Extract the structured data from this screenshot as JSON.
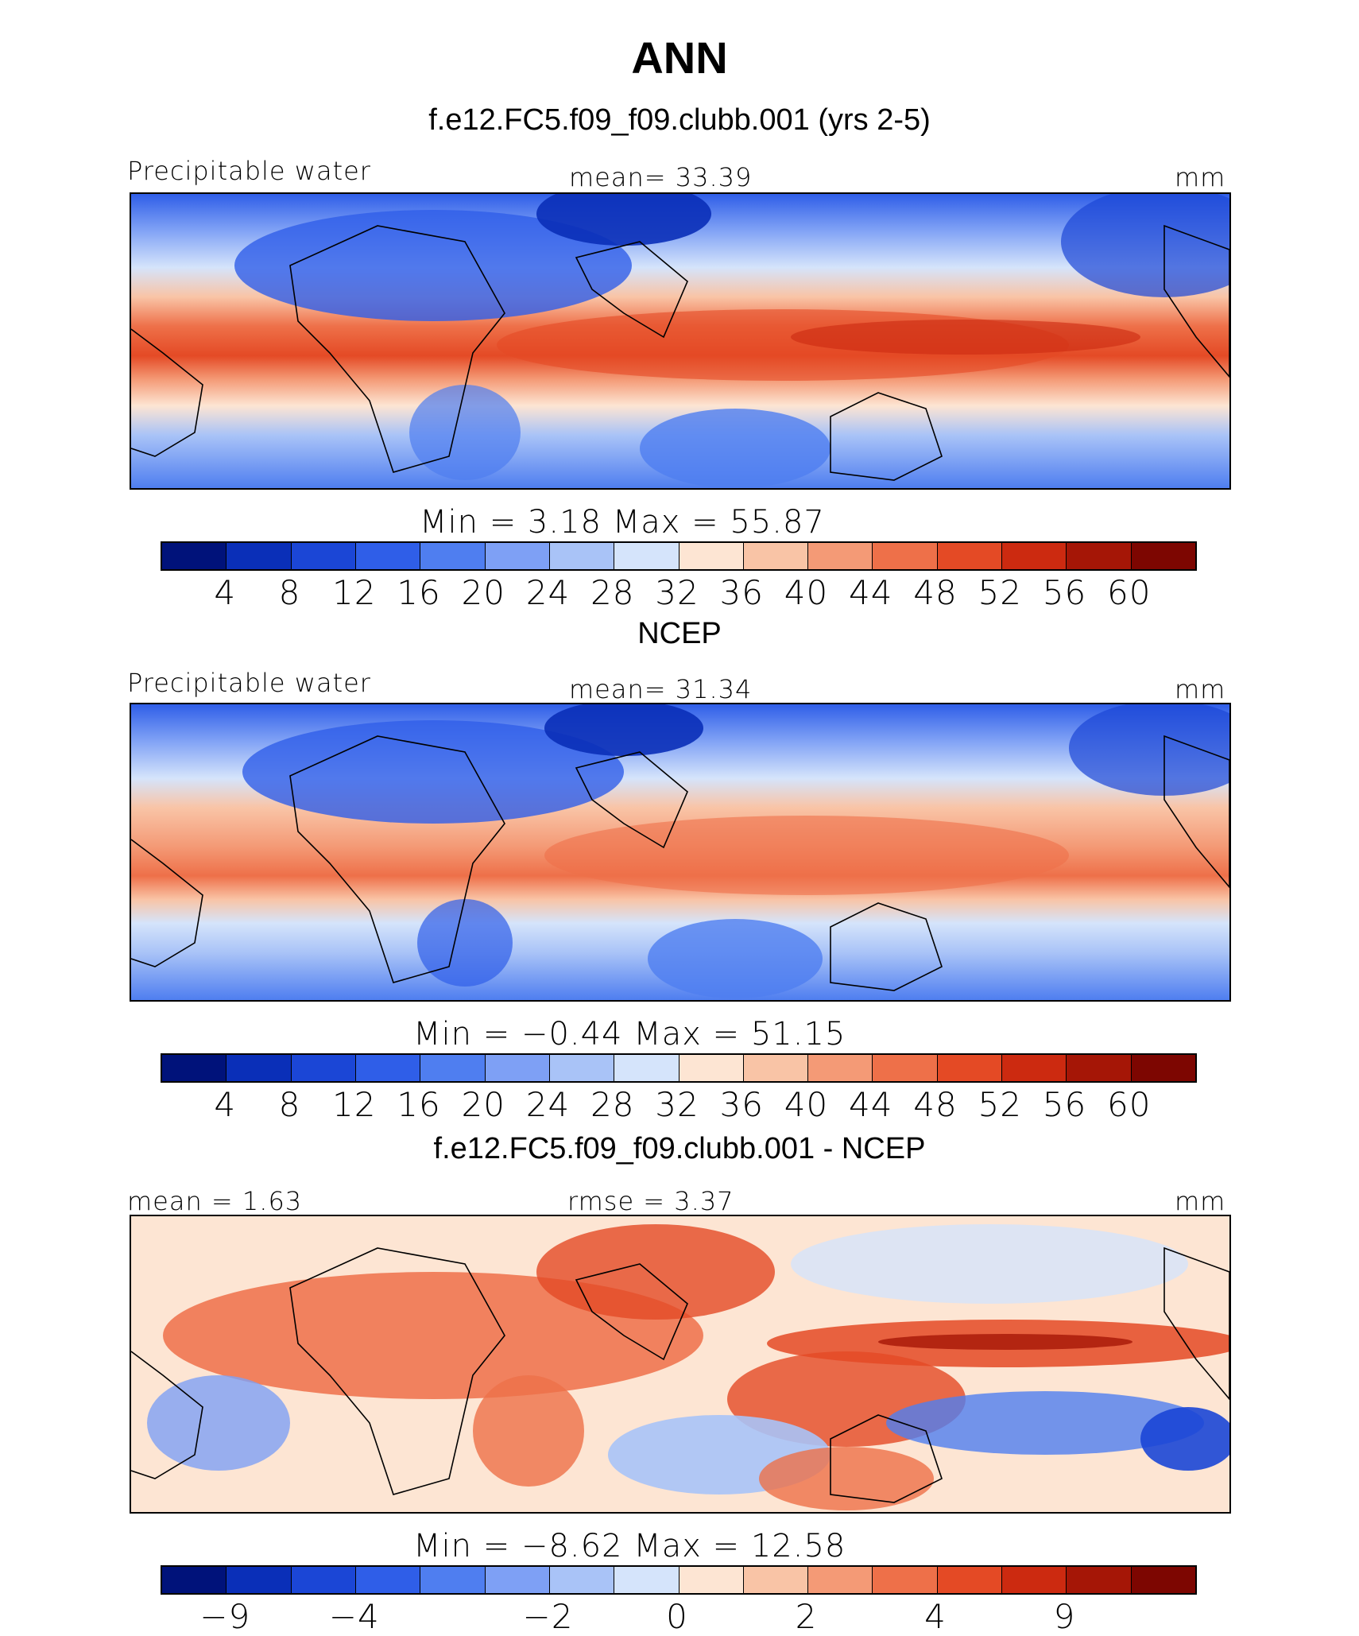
{
  "figure": {
    "title": "ANN",
    "panels": [
      {
        "id": "model",
        "subtitle": "f.e12.FC5.f09_f09.clubb.001 (yrs 2-5)",
        "left_label": "Precipitable water",
        "center_label": "mean=   33.39",
        "right_label": "mm",
        "stats": "Min  =    3.18  Max  =   55.87",
        "ticks": [
          "4",
          "8",
          "12",
          "16",
          "20",
          "24",
          "28",
          "32",
          "36",
          "40",
          "44",
          "48",
          "52",
          "56",
          "60"
        ],
        "colors": [
          "#00127a",
          "#0a2fb8",
          "#1b46d6",
          "#2f5ee8",
          "#4f7ef0",
          "#7ea0f5",
          "#a9c3f7",
          "#d5e4fb",
          "#fde5d3",
          "#f9c4a6",
          "#f49a76",
          "#ee7049",
          "#e44a25",
          "#cc2a10",
          "#a51606",
          "#7d0601"
        ]
      },
      {
        "id": "obs",
        "subtitle": "NCEP",
        "left_label": "Precipitable water",
        "center_label": "mean=   31.34",
        "right_label": "mm",
        "stats": "Min  =   −0.44  Max  =   51.15",
        "ticks": [
          "4",
          "8",
          "12",
          "16",
          "20",
          "24",
          "28",
          "32",
          "36",
          "40",
          "44",
          "48",
          "52",
          "56",
          "60"
        ],
        "colors": [
          "#00127a",
          "#0a2fb8",
          "#1b46d6",
          "#2f5ee8",
          "#4f7ef0",
          "#7ea0f5",
          "#a9c3f7",
          "#d5e4fb",
          "#fde5d3",
          "#f9c4a6",
          "#f49a76",
          "#ee7049",
          "#e44a25",
          "#cc2a10",
          "#a51606",
          "#7d0601"
        ]
      },
      {
        "id": "diff",
        "subtitle": "f.e12.FC5.f09_f09.clubb.001 - NCEP",
        "left_label": "mean  =    1.63",
        "center_label": "rmse  =    3.37",
        "right_label": "mm",
        "stats": "Min  =   −8.62  Max  =   12.58",
        "ticks": [
          "−9",
          "−4",
          "−2",
          "0",
          "2",
          "4",
          "9"
        ],
        "colors": [
          "#00127a",
          "#0a2fb8",
          "#1b46d6",
          "#2f5ee8",
          "#4f7ef0",
          "#7ea0f5",
          "#a9c3f7",
          "#d5e4fb",
          "#fde5d3",
          "#f9c4a6",
          "#f49a76",
          "#ee7049",
          "#e44a25",
          "#cc2a10",
          "#a51606",
          "#7d0601"
        ]
      }
    ]
  }
}
